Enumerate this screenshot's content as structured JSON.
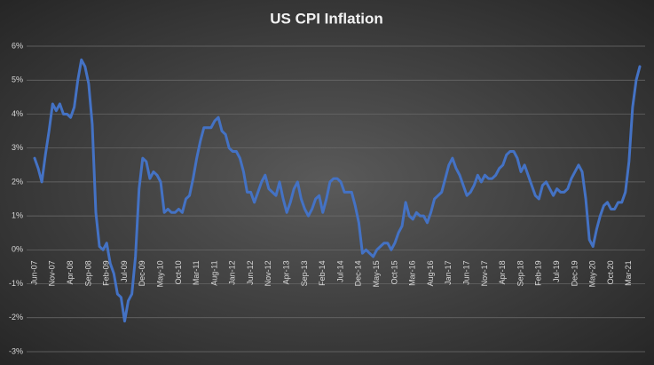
{
  "chart_data": {
    "type": "line",
    "title": "US CPI Inflation",
    "categories": [
      "Jun-07",
      null,
      null,
      null,
      null,
      "Nov-07",
      null,
      null,
      null,
      null,
      "Apr-08",
      null,
      null,
      null,
      null,
      "Sep-08",
      null,
      null,
      null,
      null,
      "Feb-09",
      null,
      null,
      null,
      null,
      "Jul-09",
      null,
      null,
      null,
      null,
      "Dec-09",
      null,
      null,
      null,
      null,
      "May-10",
      null,
      null,
      null,
      null,
      "Oct-10",
      null,
      null,
      null,
      null,
      "Mar-11",
      null,
      null,
      null,
      null,
      "Aug-11",
      null,
      null,
      null,
      null,
      "Jan-12",
      null,
      null,
      null,
      null,
      "Jun-12",
      null,
      null,
      null,
      null,
      "Nov-12",
      null,
      null,
      null,
      null,
      "Apr-13",
      null,
      null,
      null,
      null,
      "Sep-13",
      null,
      null,
      null,
      null,
      "Feb-14",
      null,
      null,
      null,
      null,
      "Jul-14",
      null,
      null,
      null,
      null,
      "Dec-14",
      null,
      null,
      null,
      null,
      "May-15",
      null,
      null,
      null,
      null,
      "Oct-15",
      null,
      null,
      null,
      null,
      "Mar-16",
      null,
      null,
      null,
      null,
      "Aug-16",
      null,
      null,
      null,
      null,
      "Jan-17",
      null,
      null,
      null,
      null,
      "Jun-17",
      null,
      null,
      null,
      null,
      "Nov-17",
      null,
      null,
      null,
      null,
      "Apr-18",
      null,
      null,
      null,
      null,
      "Sep-18",
      null,
      null,
      null,
      null,
      "Feb-19",
      null,
      null,
      null,
      null,
      "Jul-19",
      null,
      null,
      null,
      null,
      "Dec-19",
      null,
      null,
      null,
      null,
      "May-20",
      null,
      null,
      null,
      null,
      "Oct-20",
      null,
      null,
      null,
      null,
      "Mar-21",
      null,
      null,
      null
    ],
    "series": [
      {
        "name": "US CPI Inflation",
        "color": "#4472c4",
        "values": [
          2.7,
          2.4,
          2.0,
          2.8,
          3.5,
          4.3,
          4.1,
          4.3,
          4.0,
          4.0,
          3.9,
          4.2,
          5.0,
          5.6,
          5.4,
          4.9,
          3.7,
          1.1,
          0.1,
          0.0,
          0.2,
          -0.4,
          -0.7,
          -1.3,
          -1.4,
          -2.1,
          -1.5,
          -1.3,
          -0.2,
          1.8,
          2.7,
          2.6,
          2.1,
          2.3,
          2.2,
          2.0,
          1.1,
          1.2,
          1.1,
          1.1,
          1.2,
          1.1,
          1.5,
          1.6,
          2.1,
          2.7,
          3.2,
          3.6,
          3.6,
          3.6,
          3.8,
          3.9,
          3.5,
          3.4,
          3.0,
          2.9,
          2.9,
          2.7,
          2.3,
          1.7,
          1.7,
          1.4,
          1.7,
          2.0,
          2.2,
          1.8,
          1.7,
          1.6,
          2.0,
          1.5,
          1.1,
          1.4,
          1.8,
          2.0,
          1.5,
          1.2,
          1.0,
          1.2,
          1.5,
          1.6,
          1.1,
          1.5,
          2.0,
          2.1,
          2.1,
          2.0,
          1.7,
          1.7,
          1.7,
          1.3,
          0.8,
          -0.1,
          0.0,
          -0.1,
          -0.2,
          0.0,
          0.1,
          0.2,
          0.2,
          0.0,
          0.2,
          0.5,
          0.7,
          1.4,
          1.0,
          0.9,
          1.1,
          1.0,
          1.0,
          0.8,
          1.1,
          1.5,
          1.6,
          1.7,
          2.1,
          2.5,
          2.7,
          2.4,
          2.2,
          1.9,
          1.6,
          1.7,
          1.9,
          2.2,
          2.0,
          2.2,
          2.1,
          2.1,
          2.2,
          2.4,
          2.5,
          2.8,
          2.9,
          2.9,
          2.7,
          2.3,
          2.5,
          2.2,
          1.9,
          1.6,
          1.5,
          1.9,
          2.0,
          1.8,
          1.6,
          1.8,
          1.7,
          1.7,
          1.8,
          2.1,
          2.3,
          2.5,
          2.3,
          1.5,
          0.3,
          0.1,
          0.6,
          1.0,
          1.3,
          1.4,
          1.2,
          1.2,
          1.4,
          1.4,
          1.7,
          2.6,
          4.2,
          5.0,
          5.4
        ]
      }
    ],
    "ylim": [
      -3,
      6
    ],
    "yticks": [
      {
        "value": -3,
        "label": "-3%"
      },
      {
        "value": -2,
        "label": "-2%"
      },
      {
        "value": -1,
        "label": "-1%"
      },
      {
        "value": 0,
        "label": "0%"
      },
      {
        "value": 1,
        "label": "1%"
      },
      {
        "value": 2,
        "label": "2%"
      },
      {
        "value": 3,
        "label": "3%"
      },
      {
        "value": 4,
        "label": "4%"
      },
      {
        "value": 5,
        "label": "5%"
      },
      {
        "value": 6,
        "label": "6%"
      }
    ],
    "grid": true
  }
}
